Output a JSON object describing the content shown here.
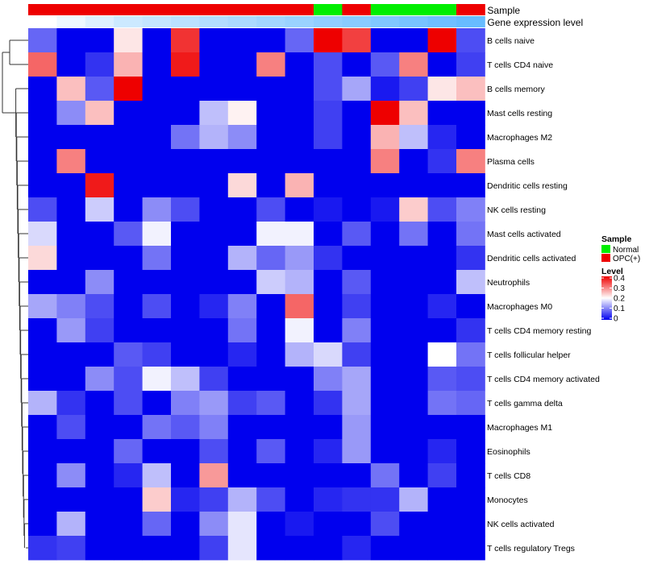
{
  "chart_data": {
    "type": "heatmap",
    "annotation_tracks": [
      {
        "name": "Sample",
        "values": [
          "OPC(+)",
          "OPC(+)",
          "OPC(+)",
          "OPC(+)",
          "OPC(+)",
          "OPC(+)",
          "OPC(+)",
          "OPC(+)",
          "OPC(+)",
          "OPC(+)",
          "Normal",
          "OPC(+)",
          "Normal",
          "Normal",
          "Normal",
          "OPC(+)"
        ]
      },
      {
        "name": "Gene expression level",
        "values": [
          0.0,
          0.1,
          0.2,
          0.3,
          0.35,
          0.4,
          0.45,
          0.5,
          0.55,
          0.6,
          0.65,
          0.7,
          0.75,
          0.8,
          0.85,
          0.9
        ]
      }
    ],
    "rows": [
      "B cells naive",
      "T cells CD4 naive",
      "B cells memory",
      "Mast cells resting",
      "Macrophages M2",
      "Plasma cells",
      "Dendritic cells resting",
      "NK cells resting",
      "Mast cells activated",
      "Dendritic cells activated",
      "Neutrophils",
      "Macrophages M0",
      "T cells CD4 memory resting",
      "T cells follicular helper",
      "T cells CD4 memory activated",
      "T cells gamma delta",
      "Macrophages M1",
      "Eosinophils",
      "T cells CD8",
      "Monocytes",
      "NK cells activated",
      "T cells regulatory  Tregs"
    ],
    "values": [
      [
        0.08,
        0.0,
        0.0,
        0.22,
        0.0,
        0.36,
        0.0,
        0.0,
        0.0,
        0.08,
        0.4,
        0.35,
        0.0,
        0.0,
        0.4,
        0.06
      ],
      [
        0.32,
        0.0,
        0.04,
        0.26,
        0.0,
        0.38,
        0.0,
        0.0,
        0.3,
        0.0,
        0.06,
        0.0,
        0.07,
        0.3,
        0.0,
        0.05
      ],
      [
        0.0,
        0.25,
        0.07,
        0.4,
        0.0,
        0.0,
        0.0,
        0.0,
        0.0,
        0.0,
        0.06,
        0.13,
        0.02,
        0.05,
        0.22,
        0.25
      ],
      [
        0.0,
        0.11,
        0.25,
        0.0,
        0.0,
        0.0,
        0.15,
        0.21,
        0.0,
        0.0,
        0.05,
        0.0,
        0.4,
        0.25,
        0.0,
        0.0
      ],
      [
        0.0,
        0.0,
        0.0,
        0.0,
        0.0,
        0.09,
        0.14,
        0.11,
        0.0,
        0.0,
        0.05,
        0.0,
        0.26,
        0.15,
        0.03,
        0.0
      ],
      [
        0.0,
        0.3,
        0.0,
        0.0,
        0.0,
        0.0,
        0.0,
        0.0,
        0.0,
        0.0,
        0.0,
        0.0,
        0.3,
        0.0,
        0.04,
        0.3
      ],
      [
        0.0,
        0.0,
        0.38,
        0.0,
        0.0,
        0.0,
        0.0,
        0.23,
        0.0,
        0.26,
        0.0,
        0.0,
        0.0,
        0.0,
        0.0,
        0.0
      ],
      [
        0.06,
        0.0,
        0.16,
        0.0,
        0.11,
        0.06,
        0.0,
        0.0,
        0.06,
        0.0,
        0.02,
        0.0,
        0.02,
        0.24,
        0.06,
        0.1
      ],
      [
        0.17,
        0.0,
        0.0,
        0.07,
        0.19,
        0.0,
        0.0,
        0.0,
        0.19,
        0.19,
        0.0,
        0.07,
        0.0,
        0.09,
        0.0,
        0.09
      ],
      [
        0.23,
        0.0,
        0.0,
        0.0,
        0.09,
        0.0,
        0.0,
        0.14,
        0.08,
        0.12,
        0.04,
        0.0,
        0.0,
        0.0,
        0.0,
        0.04
      ],
      [
        0.0,
        0.0,
        0.11,
        0.0,
        0.0,
        0.0,
        0.0,
        0.0,
        0.16,
        0.14,
        0.0,
        0.07,
        0.0,
        0.0,
        0.0,
        0.15
      ],
      [
        0.13,
        0.1,
        0.06,
        0.0,
        0.06,
        0.0,
        0.03,
        0.1,
        0.0,
        0.32,
        0.0,
        0.05,
        0.0,
        0.0,
        0.03,
        0.0
      ],
      [
        0.0,
        0.12,
        0.05,
        0.0,
        0.0,
        0.0,
        0.0,
        0.09,
        0.0,
        0.19,
        0.0,
        0.1,
        0.0,
        0.0,
        0.0,
        0.04
      ],
      [
        0.0,
        0.0,
        0.0,
        0.07,
        0.05,
        0.0,
        0.0,
        0.03,
        0.0,
        0.14,
        0.17,
        0.05,
        0.0,
        0.0,
        0.2,
        0.09
      ],
      [
        0.0,
        0.0,
        0.11,
        0.06,
        0.19,
        0.15,
        0.05,
        0.0,
        0.0,
        0.0,
        0.1,
        0.13,
        0.0,
        0.0,
        0.07,
        0.06
      ],
      [
        0.14,
        0.04,
        0.0,
        0.06,
        0.0,
        0.1,
        0.12,
        0.05,
        0.07,
        0.0,
        0.04,
        0.13,
        0.0,
        0.0,
        0.09,
        0.08
      ],
      [
        0.0,
        0.06,
        0.0,
        0.0,
        0.09,
        0.07,
        0.1,
        0.0,
        0.0,
        0.0,
        0.0,
        0.12,
        0.0,
        0.0,
        0.0,
        0.0
      ],
      [
        0.0,
        0.0,
        0.0,
        0.08,
        0.0,
        0.0,
        0.06,
        0.0,
        0.07,
        0.0,
        0.03,
        0.12,
        0.0,
        0.0,
        0.03,
        0.0
      ],
      [
        0.0,
        0.11,
        0.0,
        0.03,
        0.15,
        0.0,
        0.28,
        0.0,
        0.0,
        0.0,
        0.0,
        0.0,
        0.09,
        0.0,
        0.05,
        0.0
      ],
      [
        0.0,
        0.0,
        0.0,
        0.0,
        0.24,
        0.03,
        0.05,
        0.14,
        0.06,
        0.0,
        0.03,
        0.04,
        0.04,
        0.14,
        0.0,
        0.0
      ],
      [
        0.0,
        0.14,
        0.0,
        0.0,
        0.08,
        0.0,
        0.11,
        0.18,
        0.0,
        0.02,
        0.0,
        0.0,
        0.06,
        0.0,
        0.0,
        0.0
      ],
      [
        0.04,
        0.05,
        0.0,
        0.0,
        0.0,
        0.0,
        0.05,
        0.18,
        0.0,
        0.0,
        0.0,
        0.03,
        0.0,
        0.0,
        0.0,
        0.0
      ]
    ],
    "dendrogram_order": [
      0,
      1,
      2,
      3,
      4,
      5,
      6,
      7,
      8,
      9,
      10,
      11,
      12,
      13,
      14,
      15,
      16,
      17,
      18,
      19,
      20,
      21
    ],
    "legend": {
      "sample_title": "Sample",
      "sample_entries": [
        {
          "label": "Normal",
          "color": "#00ee00"
        },
        {
          "label": "OPC(+)",
          "color": "#ee0000"
        }
      ],
      "level_title": "Level",
      "level_ticks": [
        "0.4",
        "0.3",
        "0.2",
        "0.1",
        "0"
      ],
      "level_range": [
        0,
        0.4
      ]
    },
    "colors": {
      "low": "#0000ee",
      "mid": "#ffffff",
      "high": "#ee0000",
      "expr_low": "#ffffff",
      "expr_high": "#56b4ff",
      "dendrogram": "#333333"
    },
    "grid": false,
    "legend_position": "right"
  }
}
